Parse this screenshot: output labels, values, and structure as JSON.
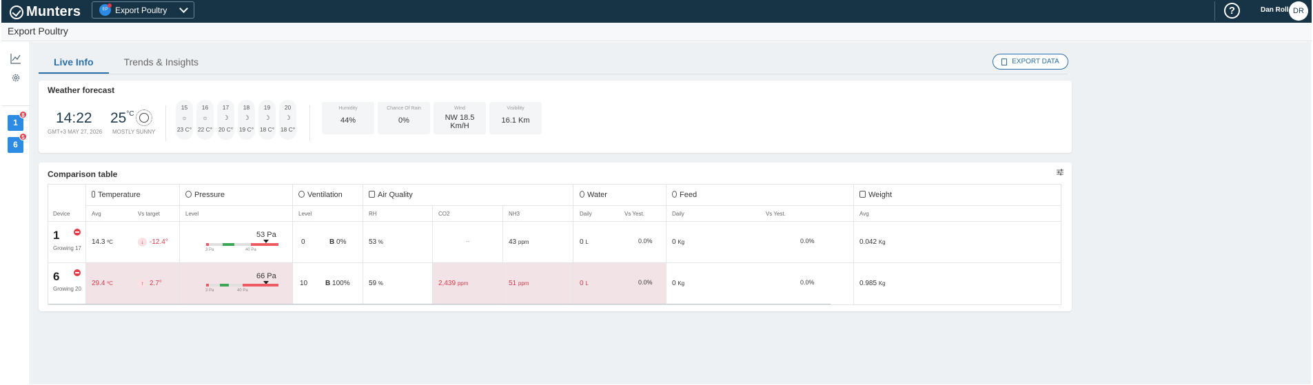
{
  "app": {
    "brand": "Munters",
    "farm_badge": "EP",
    "farm_name": "Export Poultry",
    "help_glyph": "?",
    "user_name": "Dan Roll",
    "user_initials": "DR",
    "page_title": "Export Poultry"
  },
  "sidebar": {
    "houses": [
      {
        "label": "1",
        "badge": "8"
      },
      {
        "label": "6",
        "badge": "5"
      }
    ]
  },
  "tabs": [
    {
      "label": "Live Info",
      "active": true
    },
    {
      "label": "Trends & Insights",
      "active": false
    }
  ],
  "export_label": "EXPORT DATA",
  "weather": {
    "title": "Weather forecast",
    "time": "14:22",
    "date": "GMT+3 MAY 27, 2026",
    "temp": "25",
    "temp_unit": "°C",
    "condition": "MOSTLY SUNNY",
    "days": [
      {
        "date": "15",
        "icon": "sun-icon",
        "glyph": "☼",
        "temp": "23 C°"
      },
      {
        "date": "16",
        "icon": "sun-icon",
        "glyph": "☼",
        "temp": "22 C°"
      },
      {
        "date": "17",
        "icon": "moon-icon",
        "glyph": "☽",
        "temp": "20 C°"
      },
      {
        "date": "18",
        "icon": "moon-icon",
        "glyph": "☽",
        "temp": "19 C°"
      },
      {
        "date": "19",
        "icon": "moon-icon",
        "glyph": "☽",
        "temp": "18 C°"
      },
      {
        "date": "20",
        "icon": "moon-icon",
        "glyph": "☽",
        "temp": "18 C°"
      }
    ],
    "stats": [
      {
        "label": "Humidity",
        "value": "44%"
      },
      {
        "label": "Chance Of Rain",
        "value": "0%"
      },
      {
        "label": "Wind",
        "value": "NW 18.5 Km/H"
      },
      {
        "label": "Visibility",
        "value": "16.1 Km"
      }
    ]
  },
  "comparison": {
    "title": "Comparison table",
    "groups": {
      "temperature": "Temperature",
      "pressure": "Pressure",
      "ventilation": "Ventilation",
      "air_quality": "Air Quality",
      "water": "Water",
      "feed": "Feed",
      "weight": "Weight"
    },
    "subheaders": {
      "device": "Device",
      "avg": "Avg",
      "vs_target": "Vs target",
      "level": "Level",
      "vent_level": "Level",
      "rh": "RH",
      "co2": "CO2",
      "nh3": "NH3",
      "water_daily": "Daily",
      "water_vs": "Vs Yest.",
      "feed_daily": "Daily",
      "feed_vs": "Vs Yest.",
      "weight_avg": "Avg"
    },
    "rows": [
      {
        "device": "1",
        "sub": "Growing 17",
        "temp": "14.3",
        "temp_unit": "ºC",
        "temp_trend": "↓",
        "vs_target": "-12.4°",
        "pressure": "53 Pa",
        "p_min": "3 Pa",
        "p_max": "40 Pa",
        "vent_level": "0",
        "vent_b": "B",
        "vent_pct": "0%",
        "rh": "53",
        "rh_unit": "%",
        "co2": "--",
        "co2_unit": "",
        "nh3": "43",
        "nh3_unit": "ppm",
        "water": "0",
        "water_unit": "L",
        "water_vs": "0.0%",
        "feed": "0",
        "feed_unit": "Kg",
        "feed_vs": "0.0%",
        "weight": "0.042",
        "weight_unit": "Kg"
      },
      {
        "device": "6",
        "sub": "Growing 20",
        "temp": "29.4",
        "temp_unit": "ºC",
        "temp_trend": "↑",
        "vs_target": "2.7°",
        "pressure": "66 Pa",
        "p_min": "3 Pa",
        "p_max": "40 Pa",
        "vent_level": "10",
        "vent_b": "B",
        "vent_pct": "100%",
        "rh": "59",
        "rh_unit": "%",
        "co2": "2,439",
        "co2_unit": "ppm",
        "nh3": "51",
        "nh3_unit": "ppm",
        "water": "0",
        "water_unit": "L",
        "water_vs": "0.0%",
        "feed": "0",
        "feed_unit": "Kg",
        "feed_vs": "0.0%",
        "weight": "0.985",
        "weight_unit": "Kg"
      }
    ]
  }
}
